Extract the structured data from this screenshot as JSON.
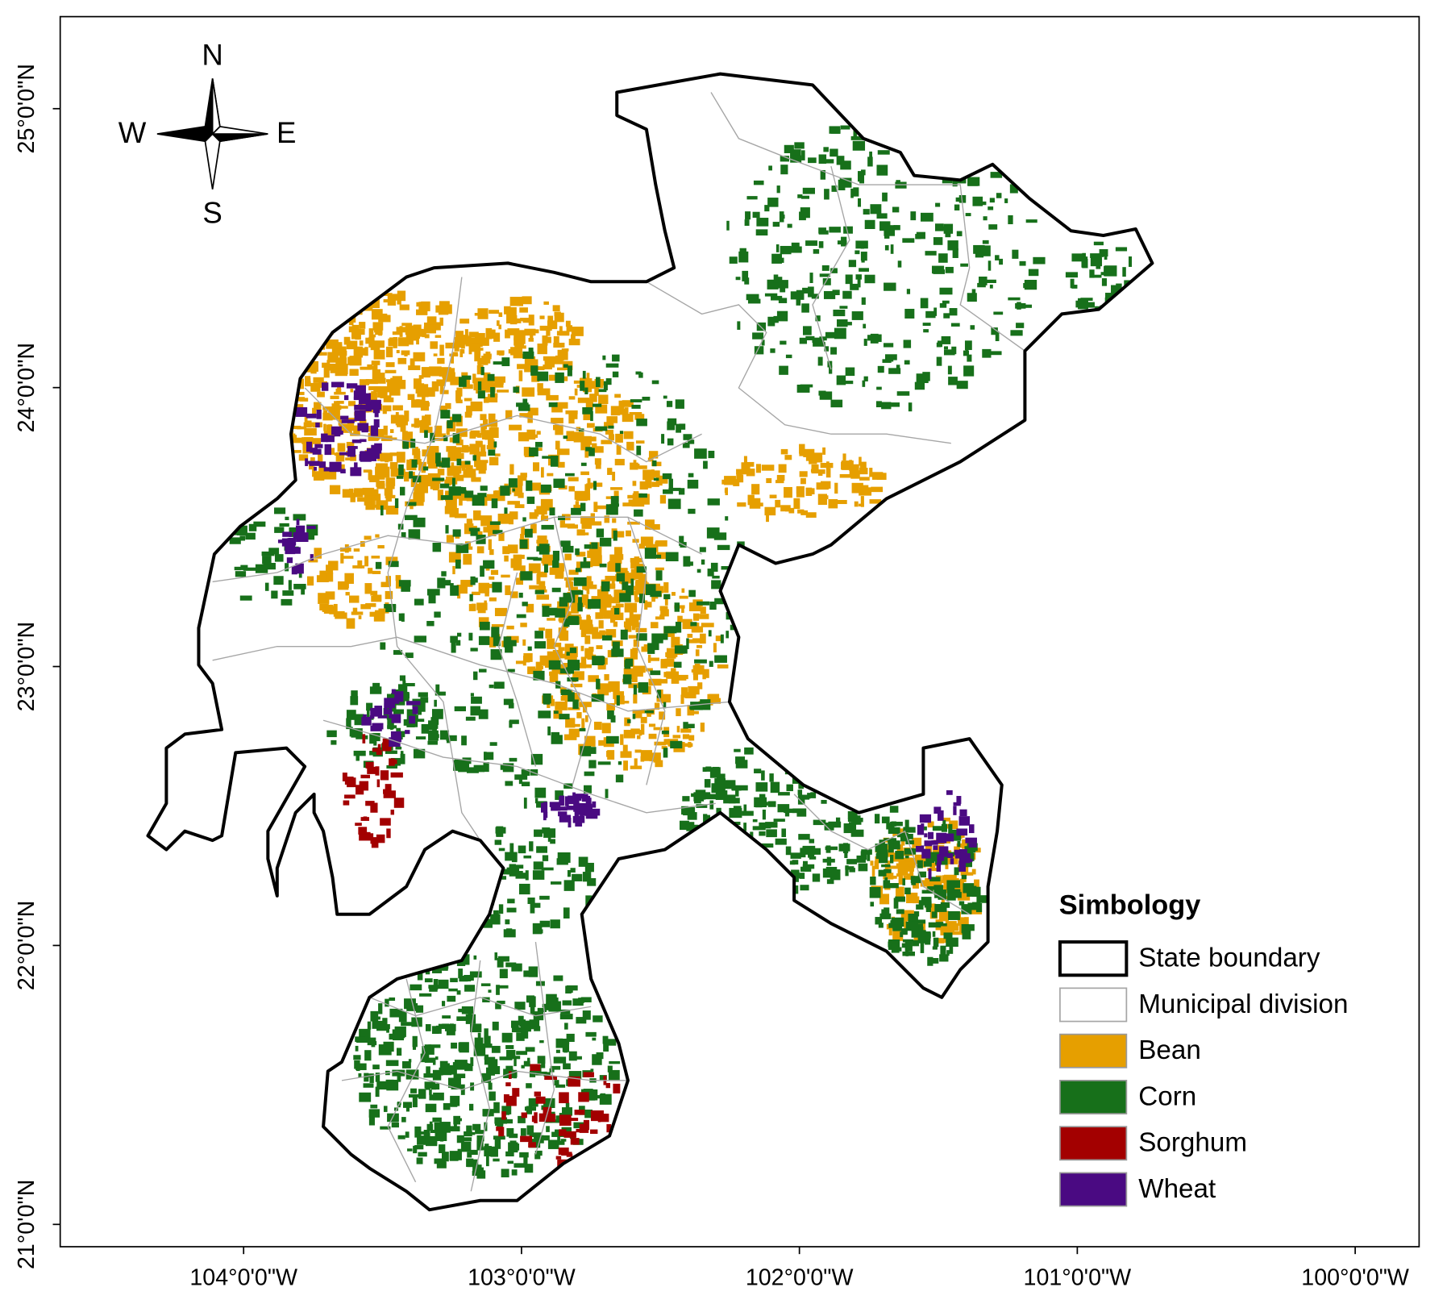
{
  "map": {
    "xlim": [
      -104.66,
      -99.77
    ],
    "ylim": [
      20.92,
      25.33
    ],
    "xticks": [
      {
        "value": -104,
        "label": "104°0'0\"W"
      },
      {
        "value": -103,
        "label": "103°0'0\"W"
      },
      {
        "value": -102,
        "label": "102°0'0\"W"
      },
      {
        "value": -101,
        "label": "101°0'0\"W"
      },
      {
        "value": -100,
        "label": "100°0'0\"W"
      }
    ],
    "yticks": [
      {
        "value": 21,
        "label": "21°0'0\"N"
      },
      {
        "value": 22,
        "label": "22°0'0\"N"
      },
      {
        "value": 23,
        "label": "23°0'0\"N"
      },
      {
        "value": 24,
        "label": "24°0'0\"N"
      },
      {
        "value": 25,
        "label": "25°0'0\"N"
      }
    ]
  },
  "compass": {
    "north": "N",
    "south": "S",
    "east": "E",
    "west": "W"
  },
  "legend": {
    "title": "Simbology",
    "items": [
      {
        "label": "State boundary",
        "color": "#000000"
      },
      {
        "label": "Municipal division",
        "color": "#a6a6a6"
      },
      {
        "label": "Bean",
        "color": "#e69f00"
      },
      {
        "label": "Corn",
        "color": "#17701a"
      },
      {
        "label": "Sorghum",
        "color": "#a30000"
      },
      {
        "label": "Wheat",
        "color": "#4a0a82"
      }
    ]
  }
}
